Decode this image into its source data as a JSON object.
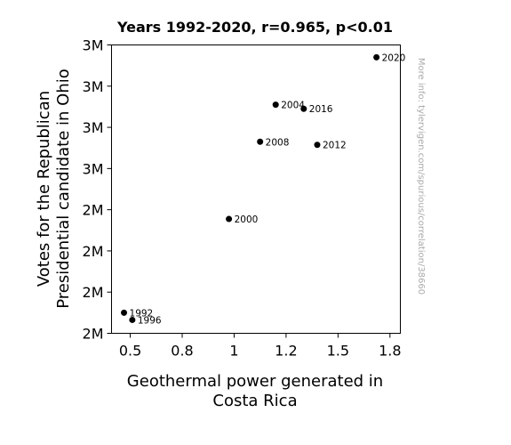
{
  "chart_data": {
    "type": "scatter",
    "title": "Years 1992-2020, r=0.965, p<0.01",
    "xlabel_lines": [
      "Geothermal power generated in",
      "Costa Rica"
    ],
    "ylabel_lines": [
      "Votes for the Republican",
      "Presidential candidate in Ohio"
    ],
    "side_note": "More info: tylervigen.com/spurious/correlation/38660",
    "xlim": [
      0.41,
      1.8
    ],
    "ylim": [
      1.7,
      3.1
    ],
    "grid": false,
    "x_ticks": [
      {
        "value": 0.5,
        "label": "0.5"
      },
      {
        "value": 0.75,
        "label": "0.8"
      },
      {
        "value": 1.0,
        "label": "1"
      },
      {
        "value": 1.25,
        "label": "1.2"
      },
      {
        "value": 1.5,
        "label": "1.5"
      },
      {
        "value": 1.75,
        "label": "1.8"
      }
    ],
    "y_ticks": [
      {
        "value": 1.7,
        "label": "2M"
      },
      {
        "value": 1.9,
        "label": "2M"
      },
      {
        "value": 2.1,
        "label": "2M"
      },
      {
        "value": 2.3,
        "label": "2M"
      },
      {
        "value": 2.5,
        "label": "3M"
      },
      {
        "value": 2.7,
        "label": "3M"
      },
      {
        "value": 2.9,
        "label": "3M"
      },
      {
        "value": 3.1,
        "label": "3M"
      }
    ],
    "points": [
      {
        "label": "1992",
        "x": 0.47,
        "y": 1.8
      },
      {
        "label": "1996",
        "x": 0.51,
        "y": 1.765
      },
      {
        "label": "2000",
        "x": 0.975,
        "y": 2.255
      },
      {
        "label": "2004",
        "x": 1.2,
        "y": 2.81
      },
      {
        "label": "2008",
        "x": 1.125,
        "y": 2.63
      },
      {
        "label": "2012",
        "x": 1.4,
        "y": 2.615
      },
      {
        "label": "2016",
        "x": 1.335,
        "y": 2.79
      },
      {
        "label": "2020",
        "x": 1.685,
        "y": 3.04
      }
    ],
    "marker_color": "#000000"
  }
}
